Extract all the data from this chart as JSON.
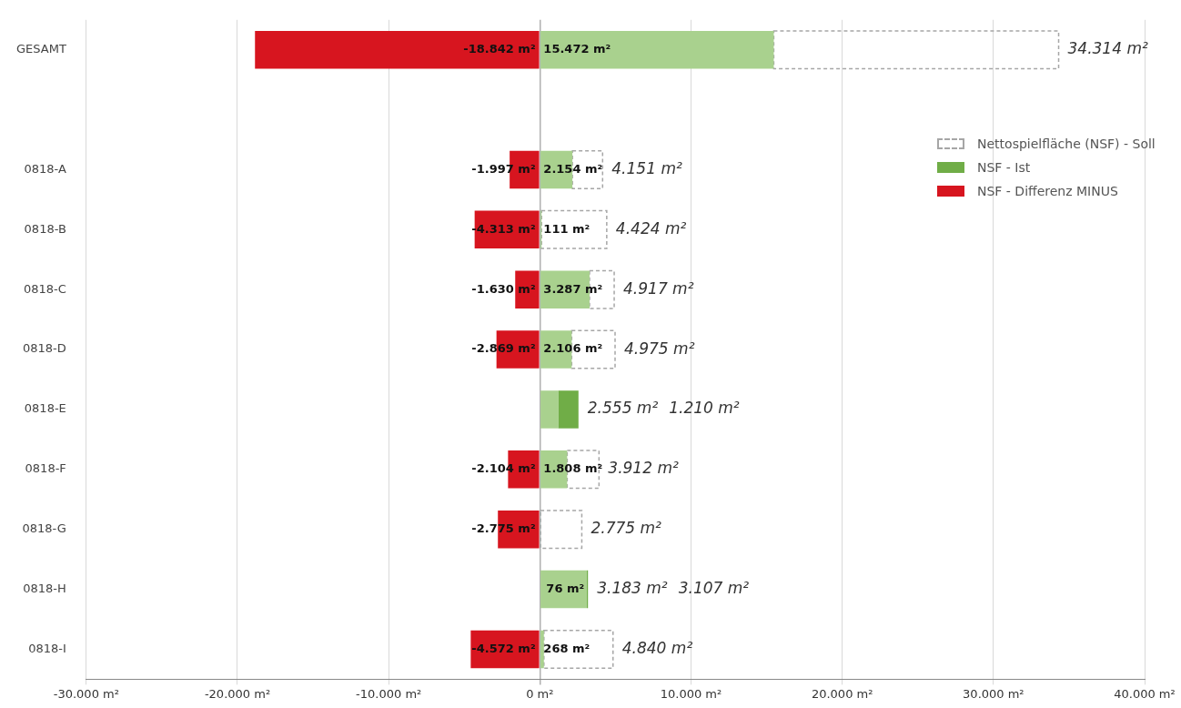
{
  "chart_data": {
    "type": "bar",
    "orientation": "horizontal",
    "stacked": true,
    "categories": [
      "GESAMT",
      null,
      "0818-A",
      "0818-B",
      "0818-C",
      "0818-D",
      "0818-E",
      "0818-F",
      "0818-G",
      "0818-H",
      "0818-I"
    ],
    "series": [
      {
        "color": "#a9d18e",
        "values": [
          15472,
          null,
          2154,
          111,
          3287,
          2106,
          1210,
          1808,
          null,
          3107,
          268
        ],
        "value_labels": [
          "15.472 m²",
          null,
          "2.154 m²",
          "111 m²",
          "3.287 m²",
          "2.106 m²",
          null,
          "1.808 m²",
          null,
          null,
          "268 m²"
        ]
      },
      {
        "name": "NSF - Ist",
        "color": "#70ad47",
        "values": [
          null,
          null,
          null,
          null,
          null,
          null,
          1345,
          null,
          null,
          76,
          null
        ],
        "value_labels": [
          null,
          null,
          null,
          null,
          null,
          null,
          null,
          null,
          null,
          "76 m²",
          null
        ]
      },
      {
        "name": "Nettospielfläche (NSF) - Soll",
        "color": "#a6a6a6",
        "line_style": "dashed",
        "values": [
          18842,
          null,
          1997,
          4313,
          1630,
          2869,
          null,
          2104,
          2775,
          null,
          4572
        ]
      },
      {
        "name": "NSF - Differenz MINUS",
        "color": "#d7151f",
        "values": [
          -18842,
          null,
          -1997,
          -4313,
          -1630,
          -2869,
          null,
          -2104,
          -2775,
          null,
          -4572
        ],
        "value_labels": [
          "-18.842 m²",
          null,
          "-1.997 m²",
          "-4.313 m²",
          "-1.630 m²",
          "-2.869 m²",
          null,
          "-2.104 m²",
          "-2.775 m²",
          null,
          "-4.572 m²"
        ]
      }
    ],
    "annotations": [
      {
        "text": "34.314 m²",
        "x": 34314,
        "y": "GESAMT"
      },
      {
        "text": "4.151 m²",
        "x": 4151,
        "y": "0818-A"
      },
      {
        "text": "4.424 m²",
        "x": 4424,
        "y": "0818-B"
      },
      {
        "text": "4.917 m²",
        "x": 4917,
        "y": "0818-C"
      },
      {
        "text": "4.975 m²",
        "x": 4975,
        "y": "0818-D"
      },
      {
        "text": "2.555 m²",
        "x": 2555,
        "y": "0818-E"
      },
      "1.210 m²",
      {
        "text": "3.912 m²",
        "x": 3912,
        "y": "0818-F"
      },
      {
        "text": "2.775 m²",
        "x": 2775,
        "y": "0818-G"
      },
      {
        "text": "3.183 m²",
        "x": 3183,
        "y": "0818-H"
      },
      "3.107 m²",
      {
        "text": "4.840 m²",
        "x": 4840,
        "y": "0818-I"
      }
    ],
    "xlim": [
      -30000,
      40000
    ],
    "xticks": [
      {
        "value": -30000,
        "label": "-30.000 m²"
      },
      {
        "value": -20000,
        "label": "-20.000 m²"
      },
      {
        "value": -10000,
        "label": "-10.000 m²"
      },
      {
        "value": 0,
        "label": "0 m²"
      },
      {
        "value": 10000,
        "label": "10.000 m²"
      },
      {
        "value": 20000,
        "label": "20.000 m²"
      },
      {
        "value": 30000,
        "label": "30.000 m²"
      },
      {
        "value": 40000,
        "label": "40.000 m²"
      }
    ],
    "grid": "x",
    "legend": "top right"
  }
}
